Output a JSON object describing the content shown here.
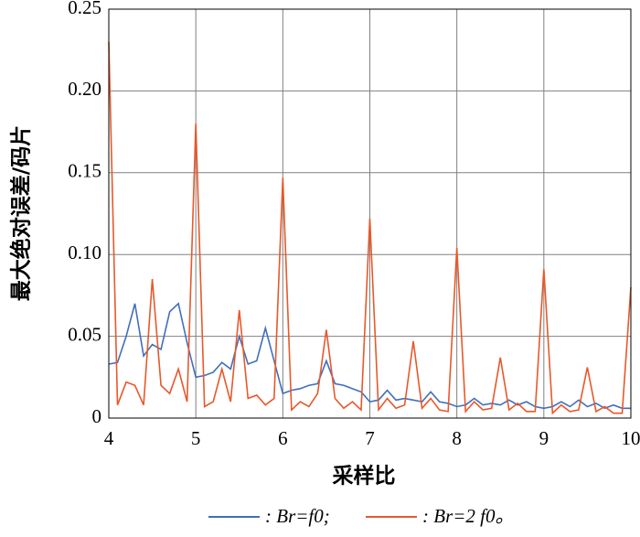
{
  "chart_data": {
    "type": "line",
    "xlabel": "采样比",
    "ylabel": "最大绝对误差/码片",
    "x": [
      4.0,
      4.1,
      4.2,
      4.3,
      4.4,
      4.5,
      4.6,
      4.7,
      4.8,
      4.9,
      5.0,
      5.1,
      5.2,
      5.3,
      5.4,
      5.5,
      5.6,
      5.7,
      5.8,
      5.9,
      6.0,
      6.1,
      6.2,
      6.3,
      6.4,
      6.5,
      6.6,
      6.7,
      6.8,
      6.9,
      7.0,
      7.1,
      7.2,
      7.3,
      7.4,
      7.5,
      7.6,
      7.7,
      7.8,
      7.9,
      8.0,
      8.1,
      8.2,
      8.3,
      8.4,
      8.5,
      8.6,
      8.7,
      8.8,
      8.9,
      9.0,
      9.1,
      9.2,
      9.3,
      9.4,
      9.5,
      9.6,
      9.7,
      9.8,
      9.9,
      10.0
    ],
    "series": [
      {
        "name": ": Br=f0;",
        "color": "#3f6fbf",
        "values": [
          0.033,
          0.034,
          0.05,
          0.07,
          0.038,
          0.045,
          0.042,
          0.065,
          0.07,
          0.046,
          0.025,
          0.026,
          0.028,
          0.034,
          0.03,
          0.05,
          0.033,
          0.035,
          0.055,
          0.035,
          0.015,
          0.017,
          0.018,
          0.02,
          0.021,
          0.035,
          0.021,
          0.02,
          0.018,
          0.016,
          0.01,
          0.011,
          0.017,
          0.011,
          0.012,
          0.011,
          0.01,
          0.016,
          0.01,
          0.009,
          0.007,
          0.008,
          0.012,
          0.008,
          0.009,
          0.008,
          0.011,
          0.008,
          0.01,
          0.007,
          0.006,
          0.007,
          0.01,
          0.007,
          0.011,
          0.007,
          0.009,
          0.006,
          0.008,
          0.006,
          0.006
        ]
      },
      {
        "name": ": Br=2 f0。",
        "color": "#e8582a",
        "values": [
          0.23,
          0.008,
          0.022,
          0.02,
          0.008,
          0.085,
          0.02,
          0.015,
          0.03,
          0.01,
          0.18,
          0.007,
          0.01,
          0.03,
          0.01,
          0.066,
          0.012,
          0.014,
          0.008,
          0.012,
          0.147,
          0.005,
          0.01,
          0.007,
          0.015,
          0.054,
          0.012,
          0.006,
          0.01,
          0.005,
          0.122,
          0.005,
          0.012,
          0.006,
          0.008,
          0.047,
          0.006,
          0.012,
          0.005,
          0.004,
          0.104,
          0.004,
          0.01,
          0.005,
          0.006,
          0.037,
          0.005,
          0.009,
          0.004,
          0.004,
          0.091,
          0.003,
          0.008,
          0.004,
          0.005,
          0.031,
          0.004,
          0.007,
          0.003,
          0.003,
          0.08
        ]
      }
    ],
    "xlim": [
      4,
      10
    ],
    "xticks": [
      4,
      5,
      6,
      7,
      8,
      9,
      10
    ],
    "ylim": [
      0,
      0.25
    ],
    "yticks": [
      0,
      0.05,
      {
        "value": 0.1,
        "label": "0.10"
      },
      0.15,
      {
        "value": 0.2,
        "label": "0.20"
      },
      0.25
    ],
    "grid": true
  }
}
